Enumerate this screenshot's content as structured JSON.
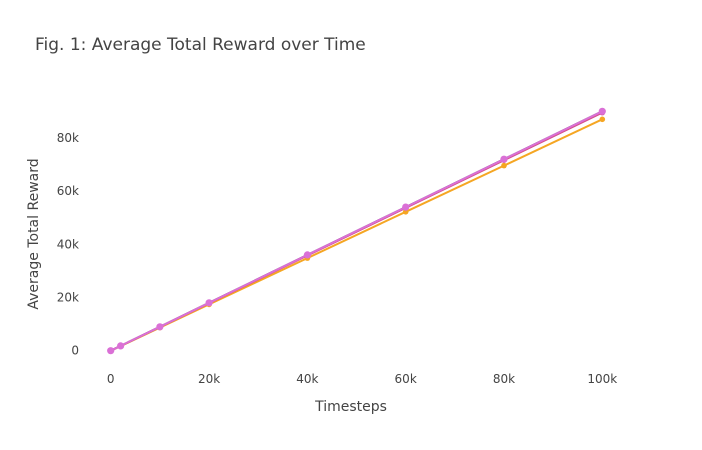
{
  "chart_data": {
    "type": "line",
    "title": "Fig. 1: Average Total Reward over Time",
    "xlabel": "Timesteps",
    "ylabel": "Average Total Reward",
    "xlim": [
      -3000,
      115000
    ],
    "ylim": [
      -6500,
      98000
    ],
    "grid": false,
    "legend": "none",
    "x_ticks": [
      {
        "value": 0,
        "label": "0"
      },
      {
        "value": 20000,
        "label": "20k"
      },
      {
        "value": 40000,
        "label": "40k"
      },
      {
        "value": 60000,
        "label": "60k"
      },
      {
        "value": 80000,
        "label": "80k"
      },
      {
        "value": 100000,
        "label": "100k"
      }
    ],
    "y_ticks": [
      {
        "value": 0,
        "label": "0"
      },
      {
        "value": 20000,
        "label": "20k"
      },
      {
        "value": 40000,
        "label": "40k"
      },
      {
        "value": 60000,
        "label": "60k"
      },
      {
        "value": 80000,
        "label": "80k"
      }
    ],
    "x": [
      0,
      2000,
      10000,
      20000,
      40000,
      60000,
      80000,
      100000
    ],
    "series": [
      {
        "color": "#f5a623",
        "values": [
          0,
          1740,
          8700,
          17400,
          34800,
          52200,
          69600,
          87000
        ]
      },
      {
        "color": "#3a2e3e",
        "values": [
          0,
          1800,
          9000,
          18000,
          36000,
          54000,
          72000,
          90000
        ]
      },
      {
        "color": "#d45087",
        "values": [
          0,
          1790,
          8950,
          17900,
          35800,
          53700,
          71600,
          89500
        ]
      },
      {
        "color": "#da70d6",
        "values": [
          0,
          1800,
          9000,
          18000,
          36000,
          54000,
          72000,
          90000
        ]
      }
    ]
  }
}
